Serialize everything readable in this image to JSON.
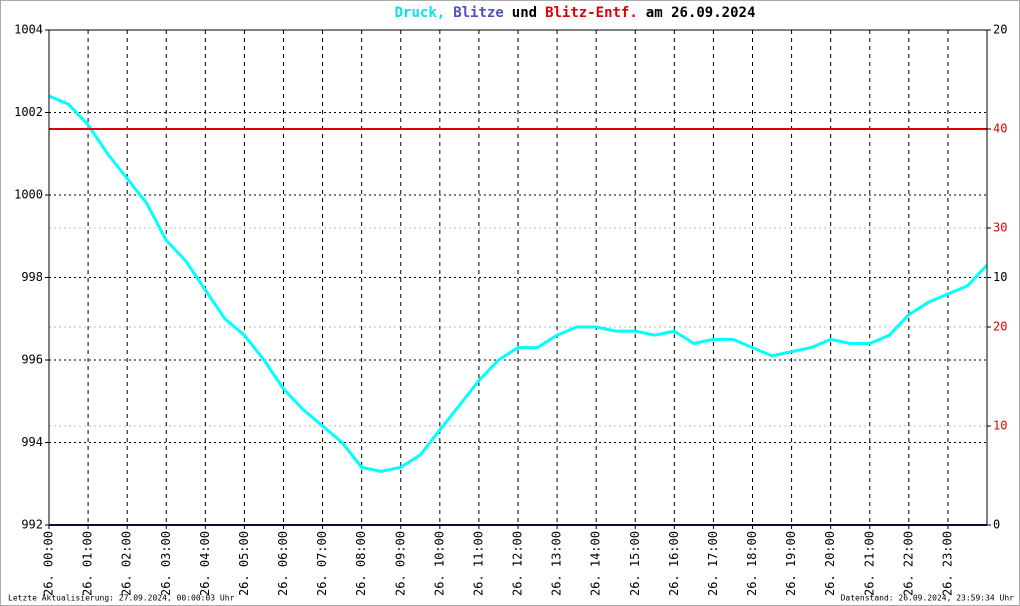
{
  "chart_data": {
    "type": "line",
    "title": [
      {
        "text": "Druck,",
        "color": "#00e5e5"
      },
      {
        "text": "Blitze",
        "color": "#5050c8"
      },
      {
        "text": "und",
        "color": "#000000"
      },
      {
        "text": "Blitz-Entf.",
        "color": "#e00000"
      },
      {
        "text": "am 26.09.2024",
        "color": "#000000"
      }
    ],
    "xlim": [
      0,
      24
    ],
    "xticks": [
      {
        "value": 0,
        "label": "26. 00:00"
      },
      {
        "value": 1,
        "label": "26. 01:00"
      },
      {
        "value": 2,
        "label": "26. 02:00"
      },
      {
        "value": 3,
        "label": "26. 03:00"
      },
      {
        "value": 4,
        "label": "26. 04:00"
      },
      {
        "value": 5,
        "label": "26. 05:00"
      },
      {
        "value": 6,
        "label": "26. 06:00"
      },
      {
        "value": 7,
        "label": "26. 07:00"
      },
      {
        "value": 8,
        "label": "26. 08:00"
      },
      {
        "value": 9,
        "label": "26. 09:00"
      },
      {
        "value": 10,
        "label": "26. 10:00"
      },
      {
        "value": 11,
        "label": "26. 11:00"
      },
      {
        "value": 12,
        "label": "26. 12:00"
      },
      {
        "value": 13,
        "label": "26. 13:00"
      },
      {
        "value": 14,
        "label": "26. 14:00"
      },
      {
        "value": 15,
        "label": "26. 15:00"
      },
      {
        "value": 16,
        "label": "26. 16:00"
      },
      {
        "value": 17,
        "label": "26. 17:00"
      },
      {
        "value": 18,
        "label": "26. 18:00"
      },
      {
        "value": 19,
        "label": "26. 19:00"
      },
      {
        "value": 20,
        "label": "26. 20:00"
      },
      {
        "value": 21,
        "label": "26. 21:00"
      },
      {
        "value": 22,
        "label": "26. 22:00"
      },
      {
        "value": 23,
        "label": "26. 23:00"
      }
    ],
    "ylim": [
      992,
      1004
    ],
    "yticks": [
      992,
      994,
      996,
      998,
      1000,
      1002,
      1004
    ],
    "y2lim": [
      0,
      20
    ],
    "y2ticks": [
      0,
      10,
      20
    ],
    "y3lim": [
      0,
      50
    ],
    "y3ticks": [
      10,
      20,
      30,
      40
    ],
    "y3color": "#e00000",
    "grid": true,
    "series": [
      {
        "color": "#00ffff",
        "axis": "y",
        "x": [
          0,
          0.5,
          1,
          1.5,
          2,
          2.5,
          3,
          3.5,
          4,
          4.5,
          5,
          5.5,
          6,
          6.5,
          7,
          7.5,
          8,
          8.5,
          9,
          9.5,
          10,
          10.5,
          11,
          11.5,
          12,
          12.5,
          13,
          13.5,
          14,
          14.5,
          15,
          15.5,
          16,
          16.5,
          17,
          17.5,
          18,
          18.5,
          19,
          19.5,
          20,
          20.5,
          21,
          21.5,
          22,
          22.5,
          23,
          23.5,
          24
        ],
        "values": [
          1002.4,
          1002.2,
          1001.7,
          1001.0,
          1000.4,
          999.8,
          998.9,
          998.4,
          997.7,
          997.0,
          996.6,
          996.0,
          995.3,
          994.8,
          994.4,
          994.0,
          993.4,
          993.3,
          993.4,
          993.7,
          994.3,
          994.9,
          995.5,
          996.0,
          996.3,
          996.3,
          996.6,
          996.8,
          996.8,
          996.7,
          996.7,
          996.6,
          996.7,
          996.4,
          996.5,
          996.5,
          996.3,
          996.1,
          996.2,
          996.3,
          996.5,
          996.4,
          996.4,
          996.6,
          997.1,
          997.4,
          997.6,
          997.8,
          998.3
        ]
      },
      {
        "color": "#1a1a80",
        "axis": "y2",
        "x": [
          0,
          24
        ],
        "values": [
          0,
          0
        ]
      },
      {
        "color": "#e00000",
        "axis": "y3",
        "x": [
          0,
          24
        ],
        "values": [
          40,
          40
        ]
      }
    ],
    "footer_left": "Letzte Aktualisierung: 27.09.2024, 00:00:03 Uhr",
    "footer_right": "Datenstand: 26.09.2024, 23:59:34 Uhr"
  }
}
